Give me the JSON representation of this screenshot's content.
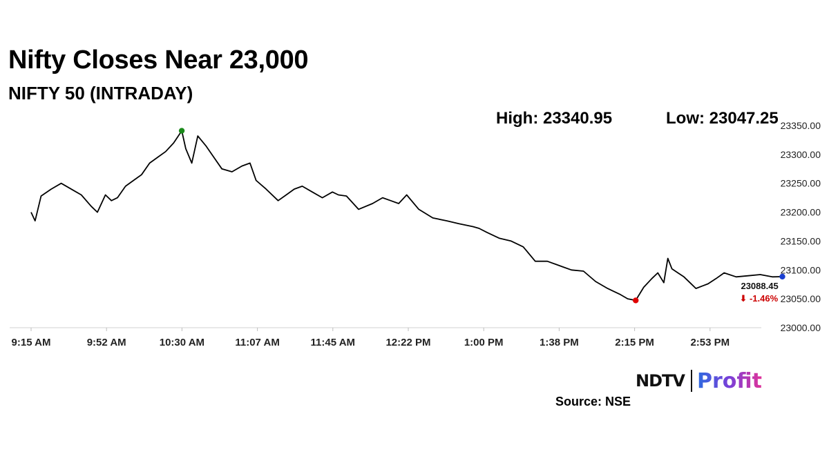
{
  "title": "Nifty Closes Near 23,000",
  "subtitle": "NIFTY 50 (INTRADAY)",
  "high_label": "High: 23340.95",
  "low_label": "Low: 23047.25",
  "source": "Source: NSE",
  "logo": {
    "brand": "NDTV",
    "product": "Profit"
  },
  "last_value_label": "23088.45",
  "change_label": "⬇ -1.46%",
  "chart_data": {
    "type": "line",
    "title": "NIFTY 50 (INTRADAY)",
    "xlabel": "",
    "ylabel": "",
    "ylim": [
      23000,
      23350
    ],
    "y_ticks": [
      "23000.00",
      "23050.00",
      "23100.00",
      "23150.00",
      "23200.00",
      "23250.00",
      "23300.00",
      "23350.00"
    ],
    "x_ticks": [
      "9:15 AM",
      "9:52 AM",
      "10:30 AM",
      "11:07 AM",
      "11:45 AM",
      "12:22 PM",
      "1:00 PM",
      "1:38 PM",
      "2:15 PM",
      "2:53 PM"
    ],
    "grid": false,
    "series": [
      {
        "color": "#000000",
        "x": [
          "9:15 AM",
          "9:17 AM",
          "9:20 AM",
          "9:25 AM",
          "9:30 AM",
          "9:36 AM",
          "9:40 AM",
          "9:45 AM",
          "9:48 AM",
          "9:52 AM",
          "9:55 AM",
          "9:58 AM",
          "10:02 AM",
          "10:06 AM",
          "10:10 AM",
          "10:14 AM",
          "10:18 AM",
          "10:22 AM",
          "10:26 AM",
          "10:30 AM",
          "10:32 AM",
          "10:35 AM",
          "10:38 AM",
          "10:42 AM",
          "10:45 AM",
          "10:50 AM",
          "10:55 AM",
          "11:00 AM",
          "11:04 AM",
          "11:07 AM",
          "11:12 AM",
          "11:18 AM",
          "11:22 AM",
          "11:26 AM",
          "11:30 AM",
          "11:35 AM",
          "11:40 AM",
          "11:45 AM",
          "11:48 AM",
          "11:52 AM",
          "11:58 AM",
          "12:05 PM",
          "12:10 PM",
          "12:14 PM",
          "12:18 PM",
          "12:22 PM",
          "12:28 PM",
          "12:35 PM",
          "12:42 PM",
          "12:48 PM",
          "12:55 PM",
          "12:58 PM",
          "1:02 PM",
          "1:08 PM",
          "1:14 PM",
          "1:20 PM",
          "1:26 PM",
          "1:32 PM",
          "1:36 PM",
          "1:40 PM",
          "1:44 PM",
          "1:50 PM",
          "1:56 PM",
          "2:02 PM",
          "2:08 PM",
          "2:12 PM",
          "2:16 PM",
          "2:20 PM",
          "2:24 PM",
          "2:27 PM",
          "2:30 PM",
          "2:32 PM",
          "2:34 PM",
          "2:37 PM",
          "2:40 PM",
          "2:43 PM",
          "2:46 PM",
          "2:49 PM",
          "2:52 PM",
          "2:56 PM",
          "3:00 PM",
          "3:06 PM",
          "3:12 PM",
          "3:18 PM",
          "3:24 PM",
          "3:29 PM"
        ],
        "y": [
          23200,
          23185,
          23228,
          23240,
          23250,
          23238,
          23230,
          23210,
          23200,
          23230,
          23220,
          23225,
          23245,
          23255,
          23265,
          23285,
          23295,
          23305,
          23320,
          23340.95,
          23310,
          23285,
          23332,
          23315,
          23300,
          23275,
          23270,
          23280,
          23285,
          23255,
          23240,
          23220,
          23230,
          23240,
          23245,
          23235,
          23225,
          23235,
          23230,
          23228,
          23205,
          23215,
          23225,
          23220,
          23215,
          23230,
          23205,
          23190,
          23185,
          23180,
          23175,
          23172,
          23165,
          23155,
          23150,
          23140,
          23115,
          23115,
          23110,
          23105,
          23100,
          23098,
          23080,
          23068,
          23058,
          23050,
          23047.25,
          23070,
          23085,
          23095,
          23078,
          23120,
          23102,
          23095,
          23088,
          23078,
          23068,
          23072,
          23076,
          23085,
          23095,
          23088,
          23090,
          23092,
          23088,
          23088.45
        ]
      }
    ],
    "markers": [
      {
        "label": "high",
        "x": "10:30 AM",
        "y": 23340.95,
        "color": "#1a8a1a"
      },
      {
        "label": "low",
        "x": "2:16 PM",
        "y": 23047.25,
        "color": "#e00000"
      },
      {
        "label": "last",
        "x": "3:29 PM",
        "y": 23088.45,
        "color": "#1a3fd0"
      }
    ]
  }
}
